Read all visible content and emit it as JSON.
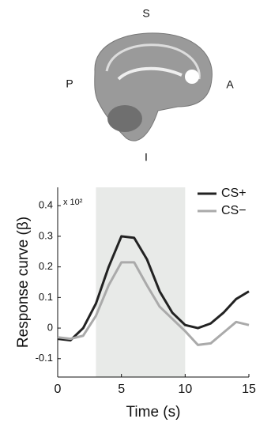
{
  "figure": {
    "orientation": {
      "superior": "S",
      "posterior": "P",
      "anterior": "A",
      "inferior": "I"
    }
  },
  "chart_data": {
    "type": "line",
    "ylabel": "Response curve (β)",
    "xlabel": "Time (s)",
    "annotation": "x 10²",
    "x": [
      0,
      1,
      2,
      3,
      4,
      5,
      6,
      7,
      8,
      9,
      10,
      11,
      12,
      13,
      14,
      15
    ],
    "series": [
      {
        "name": "CS+",
        "color": "#222222",
        "values": [
          -0.035,
          -0.04,
          0.0,
          0.08,
          0.2,
          0.3,
          0.295,
          0.225,
          0.12,
          0.05,
          0.01,
          0.0,
          0.015,
          0.05,
          0.095,
          0.12
        ]
      },
      {
        "name": "CS−",
        "color": "#aaaaaa",
        "values": [
          -0.03,
          -0.035,
          -0.025,
          0.04,
          0.14,
          0.215,
          0.215,
          0.14,
          0.07,
          0.03,
          -0.01,
          -0.055,
          -0.05,
          -0.015,
          0.02,
          0.01
        ]
      }
    ],
    "shaded_region": [
      3,
      10
    ],
    "shade_color": "#e8eae8",
    "xlim": [
      0,
      15
    ],
    "xticks": [
      0,
      5,
      10,
      15
    ],
    "ylim": [
      -0.16,
      0.46
    ],
    "yticks": [
      -0.1,
      0,
      0.1,
      0.2,
      0.3,
      0.4
    ],
    "legend": "upper right"
  }
}
